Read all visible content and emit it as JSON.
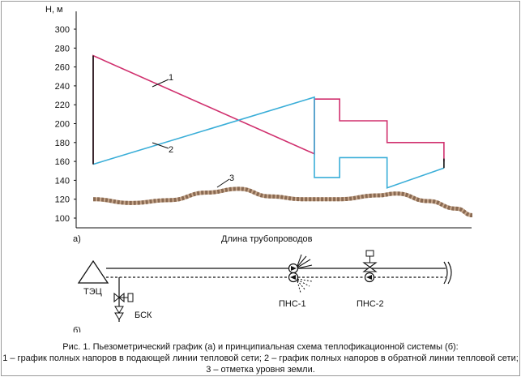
{
  "figure": {
    "yaxis_label": "Н, м",
    "y_ticks": [
      "300",
      "280",
      "260",
      "240",
      "220",
      "200",
      "180",
      "160",
      "140",
      "120",
      "100"
    ],
    "xaxis_label": "Длина трубопроводов",
    "panel_a": "а)",
    "panel_b": "б)",
    "curve_labels": [
      "1",
      "2",
      "3"
    ]
  },
  "scheme": {
    "tets": "ТЭЦ",
    "bsk": "БСК",
    "pns1": "ПНС-1",
    "pns2": "ПНС-2"
  },
  "caption": {
    "line1": "Рис. 1. Пьезометрический график (а) и принципиальная схема теплофикационной системы (б):",
    "line2": "1 – график полных напоров в подающей линии тепловой сети; 2 – график полных напоров в обратной линии тепловой сети;",
    "line3": "3 – отметка уровня земли."
  },
  "chart_data": {
    "type": "line",
    "ylabel": "Н, м",
    "xlabel": "Длина трубопроводов",
    "ylim": [
      100,
      300
    ],
    "grid": false,
    "series": [
      {
        "name": "1",
        "color": "#d0306e",
        "points": [
          [
            0,
            157
          ],
          [
            0,
            272
          ],
          [
            350,
            168
          ],
          [
            350,
            226
          ],
          [
            390,
            226
          ],
          [
            390,
            203
          ],
          [
            465,
            203
          ],
          [
            465,
            180
          ],
          [
            555,
            180
          ],
          [
            555,
            163
          ],
          [
            555,
            160
          ]
        ]
      },
      {
        "name": "2",
        "color": "#3aaed8",
        "points": [
          [
            0,
            157
          ],
          [
            350,
            228
          ],
          [
            350,
            143
          ],
          [
            390,
            143
          ],
          [
            390,
            164
          ],
          [
            465,
            164
          ],
          [
            465,
            132
          ],
          [
            555,
            153
          ]
        ]
      },
      {
        "name": "3",
        "color": "#8a6a52",
        "points": [
          [
            0,
            120
          ],
          [
            60,
            116
          ],
          [
            120,
            119
          ],
          [
            180,
            127
          ],
          [
            230,
            131
          ],
          [
            280,
            123
          ],
          [
            330,
            120
          ],
          [
            390,
            120
          ],
          [
            450,
            124
          ],
          [
            480,
            126
          ],
          [
            530,
            118
          ],
          [
            575,
            110
          ],
          [
            600,
            103
          ]
        ]
      }
    ]
  }
}
